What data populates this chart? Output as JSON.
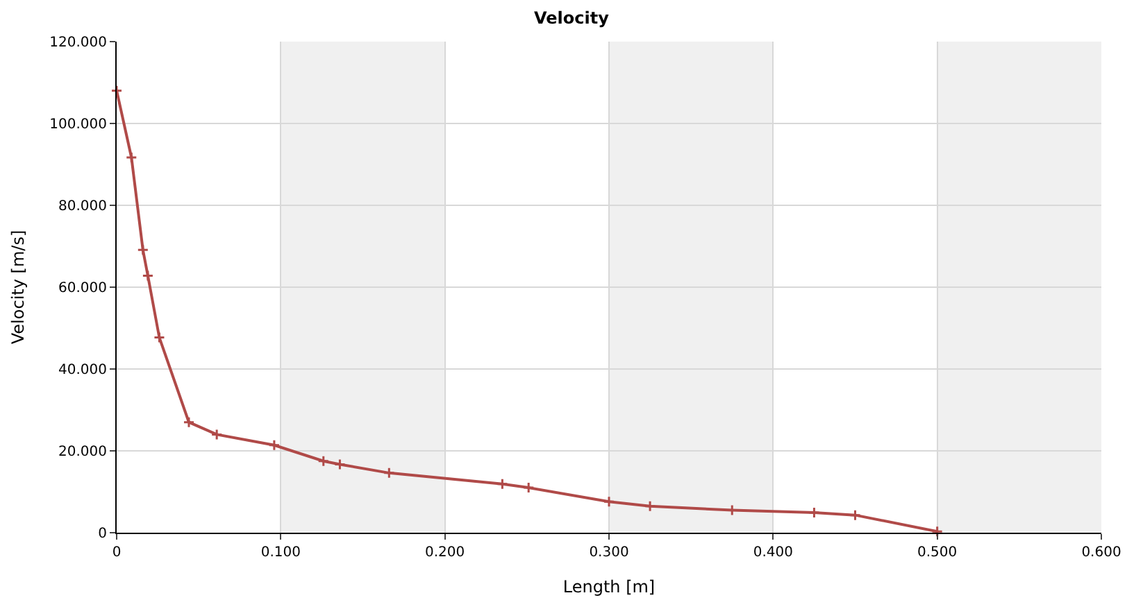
{
  "chart_data": {
    "type": "line",
    "title": "Velocity",
    "xlabel": "Length [m]",
    "ylabel": "Velocity [m/s]",
    "x": [
      0,
      0.009,
      0.016,
      0.019,
      0.026,
      0.044,
      0.061,
      0.096,
      0.126,
      0.136,
      0.166,
      0.235,
      0.251,
      0.3,
      0.325,
      0.375,
      0.425,
      0.45,
      0.5
    ],
    "series": [
      {
        "color": "#b04a48",
        "values": [
          108,
          91.7,
          69.1,
          62.8,
          47.7,
          27.0,
          24.0,
          21.4,
          17.5,
          16.7,
          14.6,
          11.9,
          11.0,
          7.6,
          6.5,
          5.5,
          4.9,
          4.3,
          0.3
        ]
      }
    ],
    "xlim": [
      0,
      0.6
    ],
    "ylim": [
      0,
      120
    ],
    "xticks": [
      0,
      {
        "value": 0.1,
        "label": "0.100"
      },
      {
        "value": 0.2,
        "label": "0.200"
      },
      {
        "value": 0.3,
        "label": "0.300"
      },
      {
        "value": 0.4,
        "label": "0.400"
      },
      {
        "value": 0.5,
        "label": "0.500"
      },
      {
        "value": 0.6,
        "label": "0.600"
      }
    ],
    "yticks": [
      0,
      {
        "value": 20,
        "label": "20.000"
      },
      {
        "value": 40,
        "label": "40.000"
      },
      {
        "value": 60,
        "label": "60.000"
      },
      {
        "value": 80,
        "label": "80.000"
      },
      {
        "value": 100,
        "label": "100.000"
      },
      {
        "value": 120,
        "label": "120.000"
      }
    ],
    "bands": [
      {
        "axis": "x",
        "from": 0.1,
        "to": 0.2,
        "color": "#f0f0f0"
      },
      {
        "axis": "x",
        "from": 0.3,
        "to": 0.4,
        "color": "#f0f0f0"
      },
      {
        "axis": "x",
        "from": 0.5,
        "to": 0.6,
        "color": "#f0f0f0"
      }
    ],
    "grid": true,
    "marker": "cross",
    "line_style": "solid"
  }
}
